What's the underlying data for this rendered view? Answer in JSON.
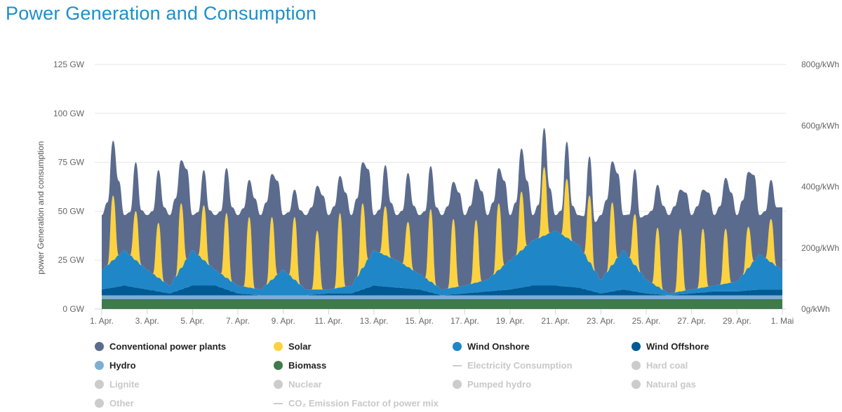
{
  "title": "Power Generation and Consumption",
  "chart_data": {
    "type": "area",
    "stacked": true,
    "title": "Power Generation and Consumption",
    "ylabel": "power Generation and consumption",
    "ylim": [
      0,
      125
    ],
    "y_ticks": [
      "0 GW",
      "25 GW",
      "50 GW",
      "75 GW",
      "100 GW",
      "125 GW"
    ],
    "y_tick_values": [
      0,
      25,
      50,
      75,
      100,
      125
    ],
    "y2_ticks": [
      "0g/kWh",
      "200g/kWh",
      "400g/kWh",
      "600g/kWh",
      "800g/kWh"
    ],
    "y2_tick_values": [
      0,
      200,
      400,
      600,
      800
    ],
    "y2lim": [
      0,
      800
    ],
    "x_days": 30,
    "x_ticks": [
      "1. Apr.",
      "3. Apr.",
      "5. Apr.",
      "7. Apr.",
      "9. Apr.",
      "11. Apr.",
      "13. Apr.",
      "15. Apr.",
      "17. Apr.",
      "19. Apr.",
      "21. Apr.",
      "23. Apr.",
      "25. Apr.",
      "27. Apr.",
      "29. Apr.",
      "1. Mai"
    ],
    "x_tick_days": [
      0,
      2,
      4,
      6,
      8,
      10,
      12,
      14,
      16,
      18,
      20,
      22,
      24,
      26,
      28,
      30
    ],
    "grid": true,
    "legend_placement": "bottom",
    "series": [
      {
        "name": "Biomass",
        "color": "#3f7a4b",
        "time_step_hours": 24,
        "values": [
          5,
          5,
          5,
          5,
          5,
          5,
          5,
          5,
          5,
          5,
          5,
          5,
          5,
          5,
          5,
          5,
          5,
          5,
          5,
          5,
          5,
          5,
          5,
          5,
          5,
          5,
          5,
          5,
          5,
          5,
          5
        ]
      },
      {
        "name": "Hydro",
        "color": "#7eaed4",
        "time_step_hours": 24,
        "values": [
          2,
          2,
          2,
          2,
          2,
          2,
          2,
          2,
          2,
          2,
          2,
          2,
          2,
          2,
          2,
          2,
          2,
          2,
          2,
          2,
          2,
          2,
          2,
          2,
          2,
          2,
          2,
          2,
          2,
          2,
          2
        ]
      },
      {
        "name": "Wind Offshore",
        "color": "#005a94",
        "time_step_hours": 24,
        "values": [
          3,
          5,
          3,
          1,
          5,
          5,
          1,
          0,
          0,
          0,
          1,
          1,
          5,
          4,
          3,
          0,
          1,
          2,
          3,
          5,
          5,
          4,
          1,
          3,
          1,
          0,
          1,
          2,
          2,
          3,
          3
        ]
      },
      {
        "name": "Wind Onshore",
        "color": "#1f87c7",
        "time_step_hours": 24,
        "values": [
          10,
          18,
          10,
          4,
          18,
          8,
          4,
          3,
          13,
          3,
          2,
          4,
          18,
          14,
          8,
          3,
          4,
          6,
          15,
          23,
          28,
          22,
          7,
          20,
          7,
          1,
          2,
          3,
          5,
          18,
          10
        ]
      },
      {
        "name": "Solar",
        "color": "#fcd23f",
        "time_step_hours": 6,
        "values": [
          0,
          0,
          33,
          0,
          0,
          0,
          25,
          0,
          0,
          0,
          28,
          0,
          0,
          0,
          33,
          0,
          0,
          0,
          28,
          0,
          0,
          0,
          33,
          0,
          0,
          0,
          36,
          0,
          0,
          0,
          32,
          0,
          0,
          0,
          32,
          0,
          0,
          0,
          30,
          0,
          0,
          0,
          38,
          0,
          0,
          0,
          33,
          0,
          0,
          0,
          25,
          0,
          0,
          0,
          23,
          0,
          0,
          0,
          37,
          0,
          0,
          0,
          35,
          0,
          0,
          0,
          32,
          0,
          0,
          0,
          34,
          0,
          0,
          0,
          30,
          0,
          0,
          0,
          35,
          0,
          0,
          0,
          30,
          0,
          0,
          0,
          34,
          0,
          0,
          0,
          32,
          0,
          0,
          0,
          26,
          0,
          0,
          0,
          30,
          0,
          0,
          0,
          32,
          0,
          0,
          0,
          30,
          0,
          0,
          0,
          28,
          0,
          0,
          0,
          21,
          0,
          0,
          0,
          22,
          0,
          0
        ]
      },
      {
        "name": "Conventional power plants",
        "color": "#5b6b8e",
        "time_step_hours": 6,
        "values": [
          28,
          32,
          28,
          38,
          18,
          22,
          25,
          28,
          28,
          32,
          27,
          38,
          36,
          40,
          22,
          46,
          18,
          22,
          18,
          28,
          28,
          32,
          23,
          38,
          36,
          40,
          19,
          46,
          38,
          42,
          22,
          48,
          28,
          32,
          14,
          38,
          38,
          42,
          23,
          48,
          38,
          42,
          19,
          48,
          36,
          40,
          21,
          46,
          18,
          22,
          21,
          28,
          23,
          27,
          25,
          33,
          30,
          34,
          22,
          40,
          38,
          42,
          19,
          48,
          36,
          40,
          21,
          46,
          33,
          37,
          18,
          43,
          23,
          27,
          22,
          33,
          13,
          17,
          20,
          23,
          8,
          12,
          19,
          18,
          15,
          19,
          20,
          25,
          33,
          37,
          21,
          43,
          18,
          22,
          23,
          28,
          33,
          37,
          22,
          43,
          40,
          44,
          20,
          50,
          38,
          42,
          20,
          48,
          36,
          40,
          26,
          46,
          34,
          38,
          28,
          44,
          20,
          24,
          20,
          30,
          32
        ]
      }
    ]
  },
  "legend": [
    {
      "label": "Conventional power plants",
      "color": "#5b6b8e",
      "active": true,
      "marker": "dot"
    },
    {
      "label": "Solar",
      "color": "#fcd23f",
      "active": true,
      "marker": "dot"
    },
    {
      "label": "Wind Onshore",
      "color": "#1f87c7",
      "active": true,
      "marker": "dot"
    },
    {
      "label": "Wind Offshore",
      "color": "#005a94",
      "active": true,
      "marker": "dot"
    },
    {
      "label": "Hydro",
      "color": "#7eaed4",
      "active": true,
      "marker": "dot"
    },
    {
      "label": "Biomass",
      "color": "#3f7a4b",
      "active": true,
      "marker": "dot"
    },
    {
      "label": "Electricity Consumption",
      "color": "#cccccc",
      "active": false,
      "marker": "line"
    },
    {
      "label": "Hard coal",
      "color": "#cccccc",
      "active": false,
      "marker": "dot"
    },
    {
      "label": "Lignite",
      "color": "#cccccc",
      "active": false,
      "marker": "dot"
    },
    {
      "label": "Nuclear",
      "color": "#cccccc",
      "active": false,
      "marker": "dot"
    },
    {
      "label": "Pumped hydro",
      "color": "#cccccc",
      "active": false,
      "marker": "dot"
    },
    {
      "label": "Natural gas",
      "color": "#cccccc",
      "active": false,
      "marker": "dot"
    },
    {
      "label": "Other",
      "color": "#cccccc",
      "active": false,
      "marker": "dot"
    },
    {
      "label": "CO₂ Emission Factor of power mix",
      "color": "#cccccc",
      "active": false,
      "marker": "line"
    }
  ]
}
